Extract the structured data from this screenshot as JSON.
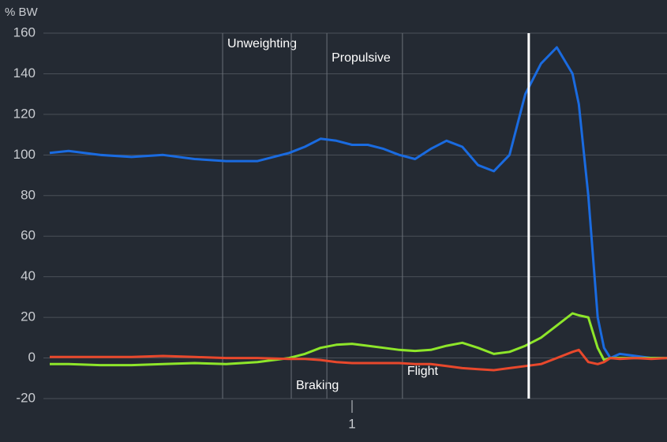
{
  "chart_data": {
    "type": "line",
    "y_label": "% BW",
    "xlim": [
      0.02,
      2.0
    ],
    "xticks": [
      1
    ],
    "ylim": [
      -20,
      160
    ],
    "yticks": [
      -20,
      0,
      20,
      40,
      60,
      80,
      100,
      120,
      140,
      160
    ],
    "grid": true,
    "x": [
      0.04,
      0.1,
      0.2,
      0.3,
      0.4,
      0.5,
      0.6,
      0.7,
      0.8,
      0.85,
      0.9,
      0.95,
      1.0,
      1.05,
      1.1,
      1.15,
      1.2,
      1.25,
      1.3,
      1.35,
      1.4,
      1.45,
      1.5,
      1.55,
      1.6,
      1.65,
      1.7,
      1.72,
      1.75,
      1.78,
      1.8,
      1.82,
      1.85,
      1.9,
      1.95,
      2.0
    ],
    "series": [
      {
        "color": "#1a6be0",
        "values": [
          101,
          102,
          100,
          99,
          100,
          98,
          97,
          97,
          101,
          104,
          108,
          107,
          105,
          105,
          103,
          100,
          98,
          103,
          107,
          104,
          95,
          92,
          100,
          130,
          145,
          153,
          140,
          125,
          80,
          20,
          5,
          0,
          2,
          1,
          0,
          0
        ]
      },
      {
        "color": "#8ee62a",
        "values": [
          -3,
          -3,
          -3.5,
          -3.5,
          -3,
          -2.5,
          -3,
          -2,
          0,
          2,
          5,
          6.5,
          7,
          6,
          5,
          4,
          3.5,
          4,
          6,
          7.5,
          5,
          2,
          3,
          6,
          10,
          16,
          22,
          21,
          20,
          5,
          -1,
          0,
          0,
          0,
          0,
          0
        ]
      },
      {
        "color": "#e8482c",
        "values": [
          0.5,
          0.5,
          0.5,
          0.5,
          1,
          0.5,
          0,
          0,
          -0.5,
          -0.5,
          -1,
          -2,
          -2.5,
          -2.5,
          -2.5,
          -2.5,
          -3,
          -3,
          -4,
          -5,
          -5.5,
          -6,
          -5,
          -4,
          -3,
          0,
          3,
          4,
          -2,
          -3,
          -2,
          0,
          -0.5,
          0,
          -0.5,
          0
        ]
      }
    ],
    "markers": [
      {
        "label": "Unweighting",
        "x": 0.589
      },
      {
        "label": "Braking",
        "x": 0.807
      },
      {
        "label": "Propulsive",
        "x": 0.92
      },
      {
        "label": "Flight",
        "x": 1.16
      }
    ],
    "cursor_x": 1.561
  }
}
